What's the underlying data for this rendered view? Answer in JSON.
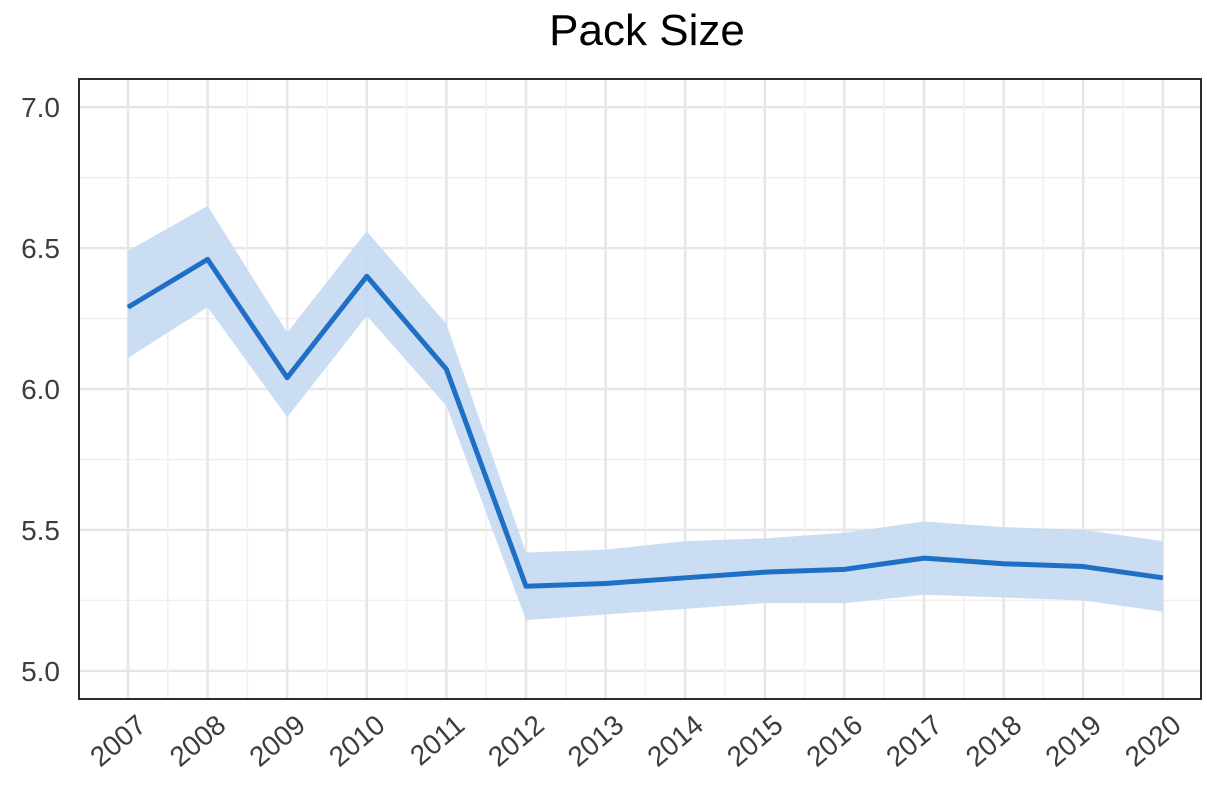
{
  "chart_data": {
    "type": "line",
    "title": "Pack Size",
    "xlabel": "",
    "ylabel": "",
    "x": [
      "2007",
      "2008",
      "2009",
      "2010",
      "2011",
      "2012",
      "2013",
      "2014",
      "2015",
      "2016",
      "2017",
      "2018",
      "2019",
      "2020"
    ],
    "series": [
      {
        "values": [
          6.29,
          6.46,
          6.04,
          6.4,
          6.07,
          5.3,
          5.31,
          5.33,
          5.35,
          5.36,
          5.4,
          5.38,
          5.37,
          5.33
        ],
        "lower": [
          6.11,
          6.29,
          5.9,
          6.26,
          5.94,
          5.18,
          5.2,
          5.22,
          5.24,
          5.24,
          5.27,
          5.26,
          5.25,
          5.21
        ],
        "upper": [
          6.49,
          6.65,
          6.2,
          6.56,
          6.23,
          5.42,
          5.43,
          5.46,
          5.47,
          5.49,
          5.53,
          5.51,
          5.5,
          5.46
        ],
        "color": "#1f6fc5",
        "band_color": "#c5d9f1"
      }
    ],
    "ylim": [
      4.9,
      7.1
    ],
    "yticks": [
      "5.0",
      "5.5",
      "6.0",
      "6.5",
      "7.0"
    ],
    "grid": true,
    "legend": "none",
    "colors": {
      "line": "#1f6fc5",
      "band": "#c5d9f1",
      "grid": "#e6e6e6",
      "frame": "#2b2b2b",
      "text": "#3d3d3d"
    }
  }
}
